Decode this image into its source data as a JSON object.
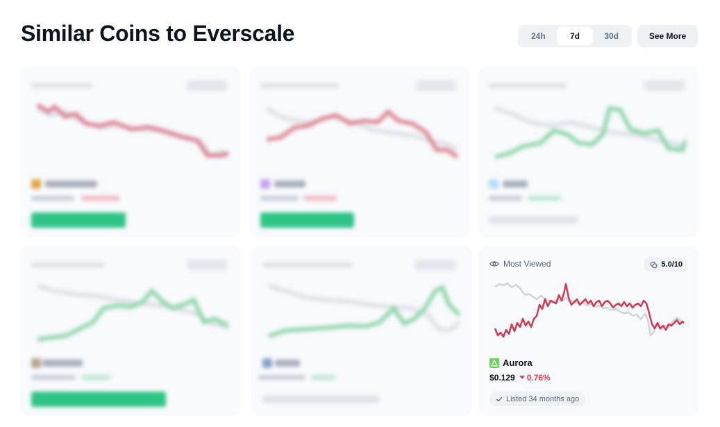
{
  "page": {
    "title": "Similar Coins to Everscale"
  },
  "time_range": {
    "options": [
      "24h",
      "7d",
      "30d"
    ],
    "selected": "7d"
  },
  "see_more_label": "See More",
  "colors": {
    "negative": "#cf3a4f",
    "positive": "#45c47e",
    "baseline": "#cfd3da",
    "accent_green": "#6bd45c"
  },
  "cards": [
    {
      "state": "blurred",
      "trend": "down"
    },
    {
      "state": "blurred",
      "trend": "down"
    },
    {
      "state": "blurred",
      "trend": "up"
    },
    {
      "state": "blurred",
      "trend": "up"
    },
    {
      "state": "blurred",
      "trend": "up"
    }
  ],
  "featured_card": {
    "label": "Most Viewed",
    "label_icon": "eye-icon",
    "score": "5.0/10",
    "score_icon": "coins-icon",
    "coin": {
      "name": "Aurora",
      "logo_icon": "aurora-triangle-icon"
    },
    "price": "$0.129",
    "change": "0.76%",
    "change_direction": "down",
    "listed": "Listed 34 months ago"
  }
}
